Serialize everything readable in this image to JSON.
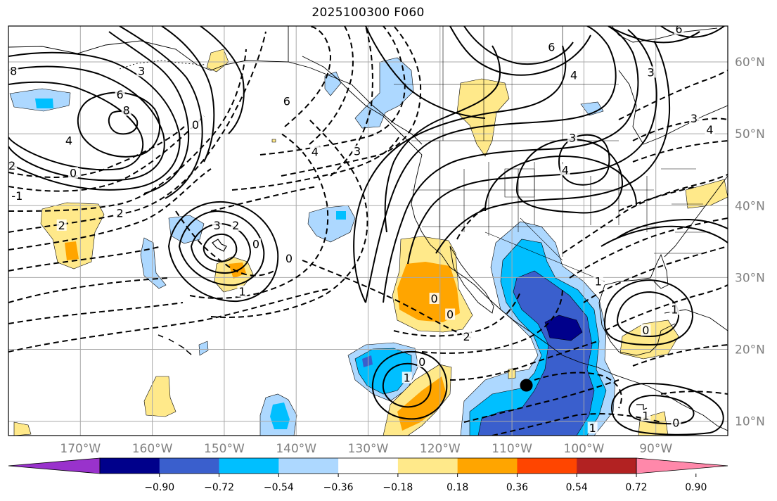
{
  "title": "2025100300 F060",
  "map": {
    "projection": "PlateCarree",
    "lon_range": [
      -180,
      -80
    ],
    "lat_range": [
      8,
      65
    ],
    "grid": true,
    "grid_color": "#a9a9a9",
    "coastline_color": "#000000",
    "lat_ticks": [
      {
        "value": 60,
        "label": "60°N"
      },
      {
        "value": 50,
        "label": "50°N"
      },
      {
        "value": 40,
        "label": "40°N"
      },
      {
        "value": 30,
        "label": "30°N"
      },
      {
        "value": 20,
        "label": "20°N"
      },
      {
        "value": 10,
        "label": "10°N"
      }
    ],
    "lon_ticks": [
      {
        "value": -170,
        "label": "170°W"
      },
      {
        "value": -160,
        "label": "160°W"
      },
      {
        "value": -150,
        "label": "150°W"
      },
      {
        "value": -140,
        "label": "140°W"
      },
      {
        "value": -130,
        "label": "130°W"
      },
      {
        "value": -120,
        "label": "120°W"
      },
      {
        "value": -110,
        "label": "110°W"
      },
      {
        "value": -100,
        "label": "100°W"
      },
      {
        "value": -90,
        "label": "90°W"
      }
    ],
    "marker": {
      "lon": -108,
      "lat": 15,
      "color": "#000000",
      "name": "storm-center-marker"
    }
  },
  "colorbar": {
    "orientation": "horizontal",
    "extend": "both",
    "colors": [
      "#9932cc",
      "#00008b",
      "#3a5fcd",
      "#00bfff",
      "#add8ff",
      "#ffffff",
      "#ffe98a",
      "#ffa500",
      "#ff4500",
      "#b22222",
      "#ff88aa"
    ],
    "tick_labels": [
      "−0.90",
      "−0.72",
      "−0.54",
      "−0.36",
      "−0.18",
      "0.18",
      "0.36",
      "0.54",
      "0.72",
      "0.90"
    ]
  },
  "contour_labels": [
    {
      "text": "8",
      "lon": -179.3,
      "lat": 58.5
    },
    {
      "text": "3",
      "lon": -161.5,
      "lat": 58.5
    },
    {
      "text": "6",
      "lon": -164.5,
      "lat": 55.2
    },
    {
      "text": "8",
      "lon": -163.6,
      "lat": 53.0
    },
    {
      "text": "4",
      "lon": -171.6,
      "lat": 48.8
    },
    {
      "text": "2",
      "lon": -179.5,
      "lat": 45.3
    },
    {
      "text": "0",
      "lon": -171.0,
      "lat": 44.3
    },
    {
      "text": "-1",
      "lon": -178.8,
      "lat": 41.1
    },
    {
      "text": "2",
      "lon": -172.6,
      "lat": 37.0
    },
    {
      "text": "2",
      "lon": -164.5,
      "lat": 38.7
    },
    {
      "text": "0",
      "lon": -154.0,
      "lat": 51.0
    },
    {
      "text": "6",
      "lon": -141.3,
      "lat": 54.3
    },
    {
      "text": "4",
      "lon": -137.4,
      "lat": 47.2
    },
    {
      "text": "3",
      "lon": -131.5,
      "lat": 47.3
    },
    {
      "text": "3",
      "lon": -151.0,
      "lat": 37.0
    },
    {
      "text": "2",
      "lon": -148.4,
      "lat": 37.0
    },
    {
      "text": "0",
      "lon": -145.6,
      "lat": 34.4
    },
    {
      "text": "0",
      "lon": -141.0,
      "lat": 32.4
    },
    {
      "text": "1",
      "lon": -147.5,
      "lat": 27.8
    },
    {
      "text": "0",
      "lon": -120.8,
      "lat": 26.8
    },
    {
      "text": "0",
      "lon": -118.6,
      "lat": 24.6
    },
    {
      "text": "2",
      "lon": -116.3,
      "lat": 21.5
    },
    {
      "text": "0",
      "lon": -122.5,
      "lat": 18.0
    },
    {
      "text": "1",
      "lon": -124.6,
      "lat": 15.8
    },
    {
      "text": "6",
      "lon": -104.5,
      "lat": 61.8
    },
    {
      "text": "4",
      "lon": -101.4,
      "lat": 57.9
    },
    {
      "text": "3",
      "lon": -101.6,
      "lat": 49.2
    },
    {
      "text": "4",
      "lon": -102.6,
      "lat": 44.7
    },
    {
      "text": "3",
      "lon": -90.7,
      "lat": 58.3
    },
    {
      "text": "3",
      "lon": -84.7,
      "lat": 51.9
    },
    {
      "text": "4",
      "lon": -82.5,
      "lat": 50.3
    },
    {
      "text": "6",
      "lon": -86.8,
      "lat": 64.3
    },
    {
      "text": "1",
      "lon": -98.0,
      "lat": 29.2
    },
    {
      "text": "1",
      "lon": -87.4,
      "lat": 25.3
    },
    {
      "text": "0",
      "lon": -91.4,
      "lat": 22.4
    },
    {
      "text": "1",
      "lon": -91.4,
      "lat": 10.5
    },
    {
      "text": "0",
      "lon": -87.2,
      "lat": 9.5
    },
    {
      "text": "1",
      "lon": -98.8,
      "lat": 8.8
    }
  ]
}
